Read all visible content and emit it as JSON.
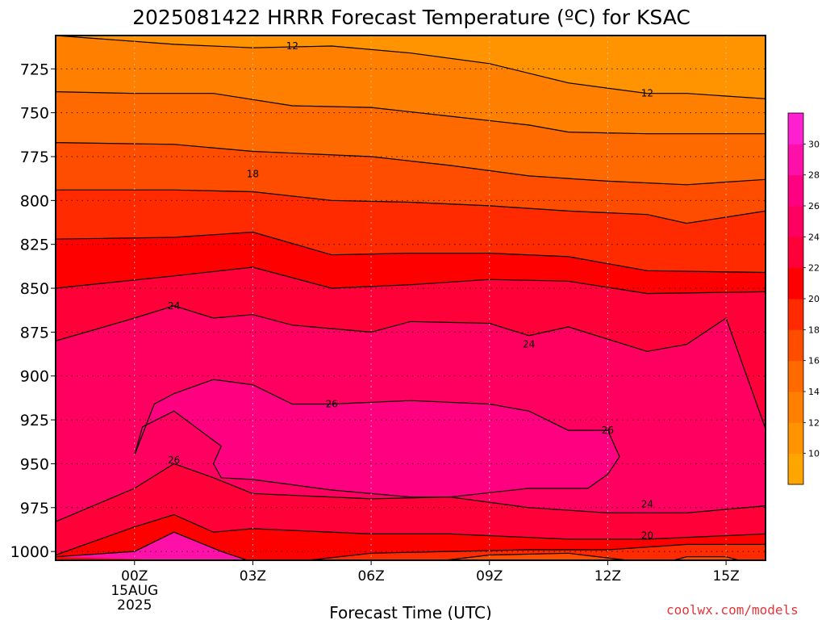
{
  "chart_data": {
    "type": "heatmap",
    "title": "2025081422 HRRR Forecast Temperature (ºC) for KSAC",
    "xlabel": "Forecast Time (UTC)",
    "ylabel": "",
    "x_ticks": [
      "00Z",
      "03Z",
      "06Z",
      "09Z",
      "12Z",
      "15Z"
    ],
    "x_tick_hours": [
      0,
      3,
      6,
      9,
      12,
      15
    ],
    "x_date_label": [
      "15AUG",
      "2025"
    ],
    "xlim_hours": [
      -2,
      16
    ],
    "y_ticks": [
      725,
      750,
      775,
      800,
      825,
      850,
      875,
      900,
      925,
      950,
      975,
      1000
    ],
    "ylim_hpa": [
      1005,
      706
    ],
    "surface_limit_hpa": 1005,
    "grid": true,
    "colorbar": {
      "levels": [
        8,
        10,
        12,
        14,
        16,
        18,
        20,
        22,
        24,
        26,
        28,
        30,
        32
      ],
      "tick_labels": [
        "10",
        "12",
        "14",
        "16",
        "18",
        "20",
        "22",
        "24",
        "26",
        "28",
        "30"
      ],
      "colors": [
        "#ffa500",
        "#ff9400",
        "#ff7f00",
        "#ff6a00",
        "#ff4d00",
        "#ff2a00",
        "#ff0000",
        "#ff0038",
        "#ff0060",
        "#ff0080",
        "#ff10a8",
        "#ff20d2"
      ]
    },
    "contour_labels": [
      {
        "text": "12",
        "hour": 4.0,
        "hpa": 712
      },
      {
        "text": "12",
        "hour": 13.0,
        "hpa": 739
      },
      {
        "text": "18",
        "hour": 3.0,
        "hpa": 785
      },
      {
        "text": "24",
        "hour": 1.0,
        "hpa": 860
      },
      {
        "text": "24",
        "hour": 10.0,
        "hpa": 882
      },
      {
        "text": "26",
        "hour": 5.0,
        "hpa": 916
      },
      {
        "text": "26",
        "hour": 12.0,
        "hpa": 931
      },
      {
        "text": "26",
        "hour": 1.0,
        "hpa": 948
      },
      {
        "text": "24",
        "hour": 13.0,
        "hpa": 973
      },
      {
        "text": "20",
        "hour": 13.0,
        "hpa": 991
      }
    ],
    "isotherms": [
      {
        "value": 12,
        "points": [
          [
            -2,
            706
          ],
          [
            1,
            711
          ],
          [
            3,
            713
          ],
          [
            5,
            712
          ],
          [
            7,
            716
          ],
          [
            9,
            722
          ],
          [
            11,
            733
          ],
          [
            13,
            739
          ],
          [
            14,
            739
          ],
          [
            16,
            742
          ]
        ]
      },
      {
        "value": 14,
        "points": [
          [
            -2,
            738
          ],
          [
            0,
            739
          ],
          [
            2,
            739
          ],
          [
            4,
            746
          ],
          [
            6,
            747
          ],
          [
            8,
            752
          ],
          [
            10,
            757
          ],
          [
            11,
            761
          ],
          [
            13,
            762
          ],
          [
            16,
            762
          ]
        ]
      },
      {
        "value": 16,
        "points": [
          [
            -2,
            767
          ],
          [
            1,
            768
          ],
          [
            3,
            772
          ],
          [
            6,
            775
          ],
          [
            8,
            780
          ],
          [
            10,
            786
          ],
          [
            12,
            789
          ],
          [
            14,
            791
          ],
          [
            16,
            788
          ]
        ]
      },
      {
        "value": 18,
        "points": [
          [
            -2,
            794
          ],
          [
            1,
            794
          ],
          [
            3,
            795
          ],
          [
            5,
            800
          ],
          [
            7,
            801
          ],
          [
            9,
            803
          ],
          [
            11,
            806
          ],
          [
            13,
            808
          ],
          [
            14,
            813
          ],
          [
            16,
            806
          ]
        ]
      },
      {
        "value": 20,
        "points": [
          [
            -2,
            822
          ],
          [
            1,
            821
          ],
          [
            3,
            818
          ],
          [
            5,
            831
          ],
          [
            7,
            830
          ],
          [
            9,
            830
          ],
          [
            11,
            832
          ],
          [
            13,
            840
          ],
          [
            16,
            841
          ]
        ]
      },
      {
        "value": 22,
        "points": [
          [
            -2,
            850
          ],
          [
            1,
            843
          ],
          [
            3,
            838
          ],
          [
            5,
            850
          ],
          [
            7,
            848
          ],
          [
            9,
            845
          ],
          [
            11,
            846
          ],
          [
            13,
            853
          ],
          [
            16,
            852
          ]
        ]
      },
      {
        "value": 24,
        "points": [
          [
            -2,
            880
          ],
          [
            0,
            867
          ],
          [
            1,
            860
          ],
          [
            2,
            867
          ],
          [
            3,
            865
          ],
          [
            4,
            871
          ],
          [
            6,
            875
          ],
          [
            7,
            869
          ],
          [
            9,
            870
          ],
          [
            10,
            877
          ],
          [
            11,
            872
          ],
          [
            13,
            886
          ],
          [
            14,
            882
          ],
          [
            15,
            867
          ],
          [
            16,
            930
          ]
        ]
      },
      {
        "value": 26,
        "points": [
          [
            0,
            945
          ],
          [
            0.5,
            916
          ],
          [
            1,
            910
          ],
          [
            2,
            902
          ],
          [
            3,
            905
          ],
          [
            4,
            916
          ],
          [
            5,
            916
          ],
          [
            7,
            914
          ],
          [
            9,
            916
          ],
          [
            10,
            920
          ],
          [
            11,
            931
          ],
          [
            12,
            931
          ],
          [
            12.3,
            946
          ],
          [
            12,
            956
          ],
          [
            11.5,
            964
          ],
          [
            10,
            964
          ],
          [
            8,
            969
          ],
          [
            7,
            969
          ],
          [
            5,
            965
          ],
          [
            3,
            959
          ],
          [
            2.2,
            958
          ],
          [
            2,
            950
          ],
          [
            2.2,
            940
          ],
          [
            1,
            920
          ],
          [
            0.2,
            929
          ],
          [
            0,
            945
          ]
        ]
      },
      {
        "value": 24,
        "points": [
          [
            -2,
            983
          ],
          [
            0,
            964
          ],
          [
            1,
            950
          ],
          [
            2,
            958
          ],
          [
            3,
            967
          ],
          [
            6,
            970
          ],
          [
            8,
            969
          ],
          [
            10,
            975
          ],
          [
            12,
            978
          ],
          [
            14,
            978
          ],
          [
            16,
            974
          ]
        ]
      },
      {
        "value": 22,
        "points": [
          [
            -2,
            1002
          ],
          [
            0,
            986
          ],
          [
            1,
            979
          ],
          [
            2,
            989
          ],
          [
            3,
            987
          ],
          [
            6,
            990
          ],
          [
            8,
            990
          ],
          [
            11,
            993
          ],
          [
            13,
            993
          ],
          [
            16,
            990
          ]
        ]
      },
      {
        "value": 20,
        "points": [
          [
            4,
            1006
          ],
          [
            6,
            1001
          ],
          [
            8,
            1000
          ],
          [
            10,
            999
          ],
          [
            12,
            999
          ],
          [
            14,
            996
          ],
          [
            16,
            996
          ]
        ]
      },
      {
        "value": 28,
        "points": [
          [
            -2,
            1003
          ],
          [
            0,
            1000
          ],
          [
            1,
            989
          ],
          [
            2.2,
            1000
          ],
          [
            3,
            1006
          ]
        ]
      },
      {
        "value": 18,
        "points": [
          [
            7.5,
            1006
          ],
          [
            9,
            1002
          ],
          [
            11,
            1001
          ],
          [
            12.5,
            1005
          ]
        ]
      },
      {
        "value": 18,
        "points": [
          [
            13.5,
            1006
          ],
          [
            14,
            1003
          ],
          [
            15,
            1003
          ],
          [
            15.5,
            1006
          ]
        ]
      }
    ]
  },
  "watermark": "coolwx.com/models"
}
